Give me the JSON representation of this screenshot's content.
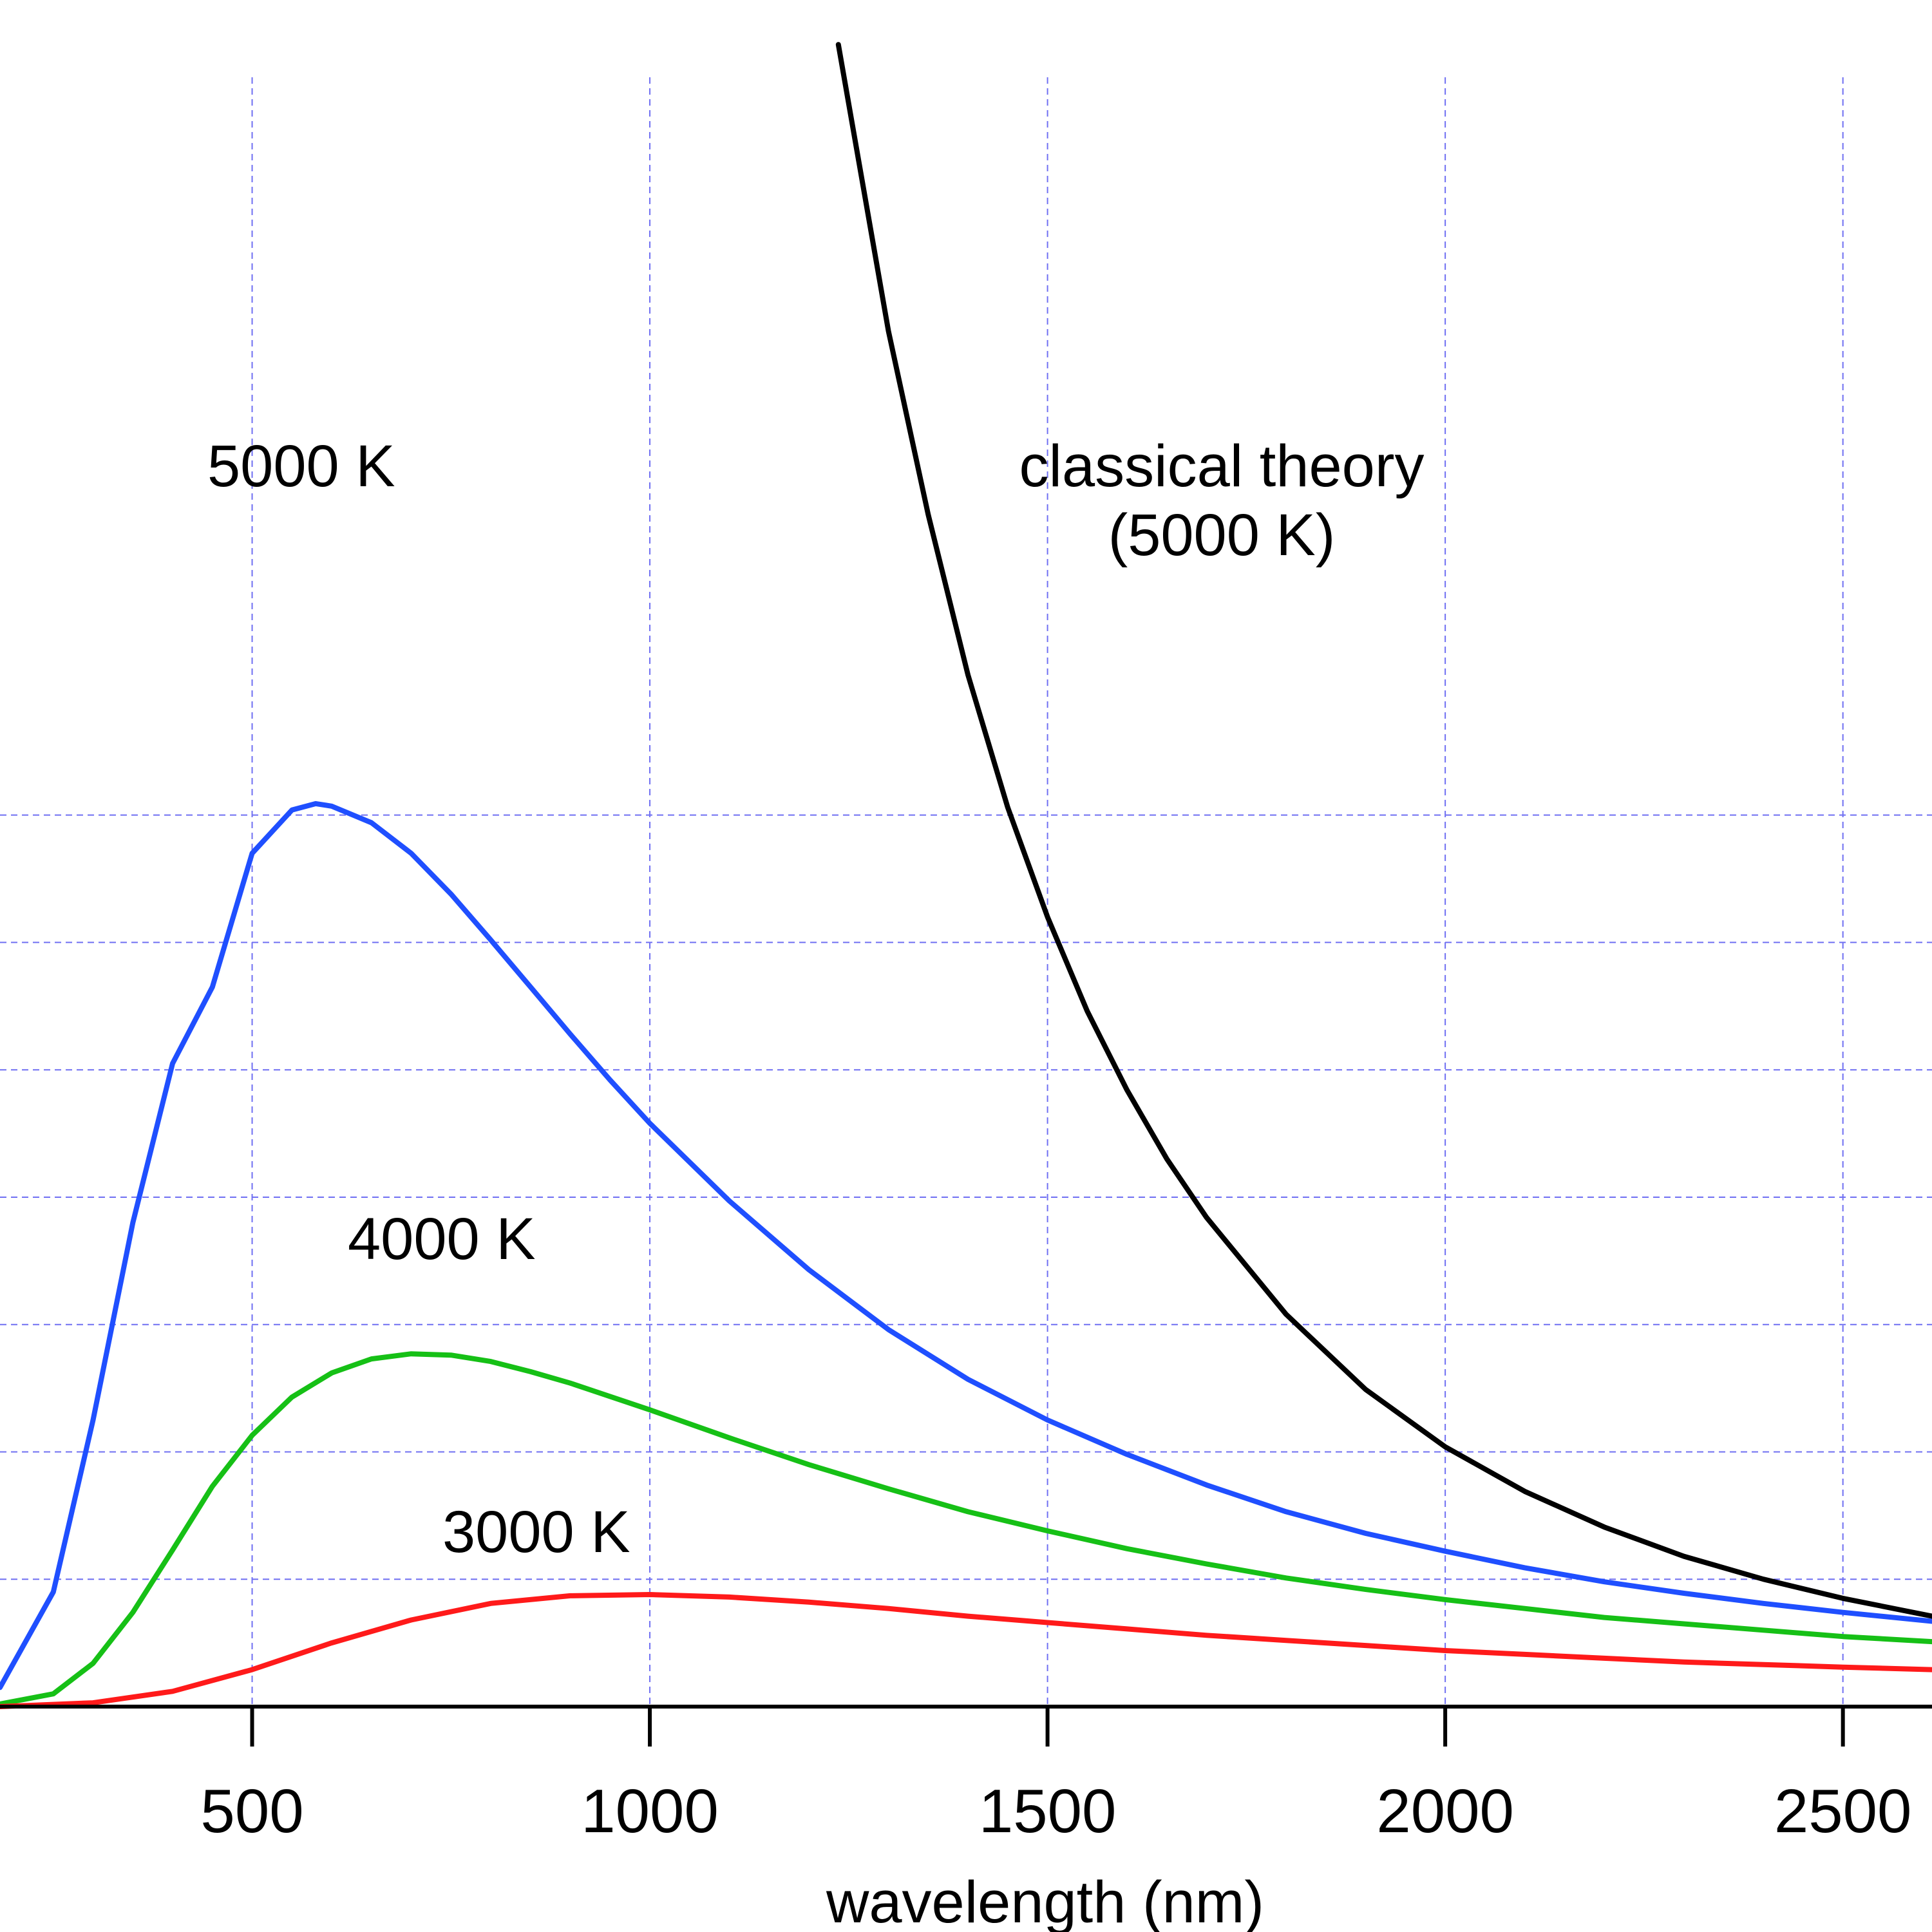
{
  "chart_data": {
    "type": "line",
    "title": "",
    "xlabel": "wavelength (nm)",
    "ylabel": "",
    "xlim": [
      183,
      2612
    ],
    "ylim": [
      0,
      13.4
    ],
    "x_ticks": [
      500,
      1000,
      1500,
      2000,
      2500
    ],
    "x_tick_labels": [
      "500",
      "1000",
      "1500",
      "2000",
      "2500"
    ],
    "y_gridlines": [
      1,
      2,
      3,
      4,
      5,
      6,
      7
    ],
    "grid": true,
    "series": [
      {
        "name": "5000 K",
        "color": "#1f4fff",
        "label": "5000 K",
        "points": [
          [
            183,
            0.15
          ],
          [
            250,
            0.9
          ],
          [
            300,
            2.25
          ],
          [
            350,
            3.8
          ],
          [
            400,
            5.05
          ],
          [
            450,
            5.65
          ],
          [
            500,
            6.7
          ],
          [
            550,
            7.04
          ],
          [
            580,
            7.09
          ],
          [
            600,
            7.07
          ],
          [
            650,
            6.94
          ],
          [
            700,
            6.7
          ],
          [
            750,
            6.38
          ],
          [
            800,
            6.02
          ],
          [
            850,
            5.65
          ],
          [
            900,
            5.28
          ],
          [
            950,
            4.92
          ],
          [
            1000,
            4.58
          ],
          [
            1100,
            3.97
          ],
          [
            1200,
            3.43
          ],
          [
            1300,
            2.96
          ],
          [
            1400,
            2.57
          ],
          [
            1500,
            2.25
          ],
          [
            1600,
            1.98
          ],
          [
            1700,
            1.74
          ],
          [
            1800,
            1.53
          ],
          [
            1900,
            1.36
          ],
          [
            2000,
            1.22
          ],
          [
            2100,
            1.09
          ],
          [
            2200,
            0.98
          ],
          [
            2300,
            0.89
          ],
          [
            2400,
            0.81
          ],
          [
            2500,
            0.74
          ],
          [
            2612,
            0.67
          ]
        ]
      },
      {
        "name": "4000 K",
        "color": "#16c016",
        "label": "4000 K",
        "points": [
          [
            183,
            0.02
          ],
          [
            250,
            0.1
          ],
          [
            300,
            0.34
          ],
          [
            350,
            0.74
          ],
          [
            400,
            1.23
          ],
          [
            450,
            1.73
          ],
          [
            500,
            2.13
          ],
          [
            550,
            2.43
          ],
          [
            600,
            2.62
          ],
          [
            650,
            2.73
          ],
          [
            700,
            2.77
          ],
          [
            750,
            2.76
          ],
          [
            800,
            2.71
          ],
          [
            850,
            2.63
          ],
          [
            900,
            2.54
          ],
          [
            1000,
            2.33
          ],
          [
            1100,
            2.11
          ],
          [
            1200,
            1.9
          ],
          [
            1300,
            1.71
          ],
          [
            1400,
            1.53
          ],
          [
            1500,
            1.38
          ],
          [
            1600,
            1.24
          ],
          [
            1700,
            1.12
          ],
          [
            1800,
            1.01
          ],
          [
            1900,
            0.92
          ],
          [
            2000,
            0.84
          ],
          [
            2100,
            0.77
          ],
          [
            2200,
            0.7
          ],
          [
            2300,
            0.65
          ],
          [
            2400,
            0.6
          ],
          [
            2500,
            0.55
          ],
          [
            2612,
            0.51
          ]
        ]
      },
      {
        "name": "3000 K",
        "color": "#ff1a1a",
        "label": "3000 K",
        "points": [
          [
            183,
            0.0
          ],
          [
            300,
            0.03
          ],
          [
            400,
            0.12
          ],
          [
            500,
            0.29
          ],
          [
            600,
            0.5
          ],
          [
            700,
            0.68
          ],
          [
            800,
            0.81
          ],
          [
            900,
            0.87
          ],
          [
            1000,
            0.88
          ],
          [
            1100,
            0.86
          ],
          [
            1200,
            0.82
          ],
          [
            1300,
            0.77
          ],
          [
            1400,
            0.71
          ],
          [
            1500,
            0.66
          ],
          [
            1600,
            0.61
          ],
          [
            1700,
            0.56
          ],
          [
            1800,
            0.52
          ],
          [
            1900,
            0.48
          ],
          [
            2000,
            0.44
          ],
          [
            2100,
            0.41
          ],
          [
            2200,
            0.38
          ],
          [
            2300,
            0.35
          ],
          [
            2400,
            0.33
          ],
          [
            2500,
            0.31
          ],
          [
            2612,
            0.29
          ]
        ]
      },
      {
        "name": "classical theory (5000 K)",
        "color": "#000000",
        "label_lines": [
          "classical theory",
          "(5000 K)"
        ],
        "points": [
          [
            1237,
            13.05
          ],
          [
            1300,
            10.8
          ],
          [
            1350,
            9.36
          ],
          [
            1400,
            8.1
          ],
          [
            1450,
            7.06
          ],
          [
            1500,
            6.2
          ],
          [
            1550,
            5.46
          ],
          [
            1600,
            4.84
          ],
          [
            1650,
            4.3
          ],
          [
            1700,
            3.84
          ],
          [
            1800,
            3.08
          ],
          [
            1900,
            2.49
          ],
          [
            2000,
            2.04
          ],
          [
            2100,
            1.69
          ],
          [
            2200,
            1.41
          ],
          [
            2300,
            1.18
          ],
          [
            2400,
            1.0
          ],
          [
            2500,
            0.85
          ],
          [
            2612,
            0.71
          ]
        ]
      }
    ]
  }
}
